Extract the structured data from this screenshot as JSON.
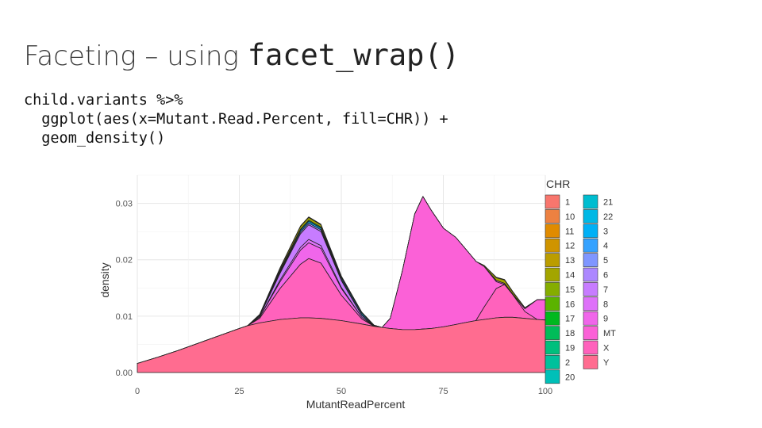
{
  "slide": {
    "title_text": "Faceting – using ",
    "title_code": "facet_wrap()",
    "code_lines": [
      "child.variants %>%",
      "  ggplot(aes(x=Mutant.Read.Percent, fill=CHR)) +",
      "  geom_density()"
    ]
  },
  "chart_data": {
    "type": "area",
    "xlabel": "MutantReadPercent",
    "ylabel": "density",
    "xlim": [
      0,
      100
    ],
    "ylim": [
      0,
      0.035
    ],
    "x_ticks": [
      "0",
      "25",
      "50",
      "75",
      "100"
    ],
    "y_ticks": [
      "0.00",
      "0.01",
      "0.02",
      "0.03"
    ],
    "grid": true,
    "stacked": true,
    "legend": {
      "title": "CHR",
      "position": "right",
      "columns": 2,
      "entries": [
        {
          "label": "1",
          "color": "#F8766D"
        },
        {
          "label": "10",
          "color": "#ED8141"
        },
        {
          "label": "11",
          "color": "#E08B00"
        },
        {
          "label": "12",
          "color": "#CF9400"
        },
        {
          "label": "13",
          "color": "#BB9D00"
        },
        {
          "label": "14",
          "color": "#A3A500"
        },
        {
          "label": "15",
          "color": "#85AD00"
        },
        {
          "label": "16",
          "color": "#5BB300"
        },
        {
          "label": "17",
          "color": "#00B81F"
        },
        {
          "label": "18",
          "color": "#00BC59"
        },
        {
          "label": "19",
          "color": "#00BF7D"
        },
        {
          "label": "2",
          "color": "#00C19C"
        },
        {
          "label": "20",
          "color": "#00C0B8"
        },
        {
          "label": "21",
          "color": "#00BDD0"
        },
        {
          "label": "22",
          "color": "#00B8E5"
        },
        {
          "label": "3",
          "color": "#00B0F6"
        },
        {
          "label": "4",
          "color": "#35A2FF"
        },
        {
          "label": "5",
          "color": "#7F96FF"
        },
        {
          "label": "6",
          "color": "#AC88FF"
        },
        {
          "label": "7",
          "color": "#C77CFF"
        },
        {
          "label": "8",
          "color": "#DE71F9"
        },
        {
          "label": "9",
          "color": "#F066EA"
        },
        {
          "label": "MT",
          "color": "#FB61D7"
        },
        {
          "label": "X",
          "color": "#FF62BC"
        },
        {
          "label": "Y",
          "color": "#FF6C90"
        }
      ]
    },
    "x": [
      0,
      5,
      10,
      15,
      20,
      25,
      27,
      30,
      35,
      40,
      42,
      45,
      50,
      55,
      58,
      60,
      62,
      65,
      68,
      70,
      72,
      75,
      78,
      80,
      83,
      85,
      88,
      90,
      92,
      95,
      98,
      100
    ],
    "series": [
      {
        "name": "Y",
        "color": "#FF6C90",
        "values": [
          0.0016,
          0.0027,
          0.0039,
          0.0052,
          0.0065,
          0.0078,
          0.0083,
          0.0088,
          0.0094,
          0.0097,
          0.0097,
          0.0096,
          0.0092,
          0.0086,
          0.0082,
          0.008,
          0.0078,
          0.0076,
          0.0076,
          0.0077,
          0.0078,
          0.0081,
          0.0085,
          0.0088,
          0.0092,
          0.0094,
          0.0097,
          0.0098,
          0.0098,
          0.0096,
          0.0094,
          0.0093
        ]
      },
      {
        "name": "X",
        "color": "#FF62BC",
        "values": [
          0,
          0,
          0,
          0,
          0,
          0,
          0,
          0.0008,
          0.0055,
          0.0095,
          0.0105,
          0.0098,
          0.0045,
          0.0009,
          0,
          0,
          0,
          0,
          0,
          0,
          0,
          0,
          0,
          0,
          0,
          0.0022,
          0.0052,
          0.0058,
          0.004,
          0.0012,
          0,
          0
        ]
      },
      {
        "name": "MT",
        "color": "#FB61D7",
        "values": [
          0,
          0,
          0,
          0,
          0,
          0,
          0,
          0,
          0,
          0,
          0,
          0,
          0,
          0,
          0,
          0,
          0.0018,
          0.0105,
          0.0205,
          0.0235,
          0.021,
          0.0175,
          0.0155,
          0.0135,
          0.0105,
          0.0072,
          0.0012,
          0,
          0,
          0.0005,
          0.0035,
          0.0036
        ]
      },
      {
        "name": "9",
        "color": "#F066EA",
        "values": [
          0,
          0,
          0,
          0,
          0,
          0,
          0,
          0.0002,
          0.0012,
          0.0025,
          0.0028,
          0.0026,
          0.0012,
          0.0003,
          0,
          0,
          0,
          0,
          0,
          0,
          0,
          0,
          0,
          0,
          0,
          0,
          0.0002,
          0.0002,
          0.0001,
          0,
          0,
          0
        ]
      },
      {
        "name": "8",
        "color": "#DE71F9",
        "values": [
          0,
          0,
          0,
          0,
          0,
          0,
          0,
          0,
          0.0003,
          0.0005,
          0.0006,
          0.0005,
          0.0002,
          0,
          0,
          0,
          0,
          0,
          0,
          0,
          0,
          0,
          0,
          0,
          0,
          0,
          0,
          0,
          0,
          0,
          0,
          0
        ]
      },
      {
        "name": "7",
        "color": "#C77CFF",
        "values": [
          0,
          0,
          0,
          0,
          0,
          0,
          0,
          0.0002,
          0.0012,
          0.0024,
          0.0026,
          0.0025,
          0.0012,
          0.0003,
          0,
          0,
          0,
          0,
          0,
          0,
          0,
          0,
          0,
          0,
          0,
          0,
          0,
          0,
          0,
          0,
          0,
          0
        ]
      },
      {
        "name": "6",
        "color": "#AC88FF",
        "values": [
          0,
          0,
          0,
          0,
          0,
          0,
          0,
          0,
          0.0002,
          0.0003,
          0.0003,
          0.0003,
          0.0002,
          0.0001,
          0,
          0,
          0,
          0,
          0,
          0,
          0,
          0,
          0,
          0,
          0,
          0,
          0,
          0,
          0,
          0,
          0,
          0
        ]
      },
      {
        "name": "3",
        "color": "#00B0F6",
        "values": [
          0,
          0,
          0,
          0,
          0,
          0,
          0,
          0.0001,
          0.0002,
          0.0003,
          0.0003,
          0.0003,
          0.0003,
          0.0003,
          0.0001,
          0,
          0,
          0,
          0,
          0,
          0,
          0,
          0,
          0,
          0,
          0,
          0,
          0,
          0,
          0,
          0,
          0
        ]
      },
      {
        "name": "20",
        "color": "#00C0B8",
        "values": [
          0,
          0,
          0,
          0,
          0,
          0,
          0,
          0.0001,
          0.0002,
          0.0002,
          0.0002,
          0.0002,
          0.0002,
          0.0002,
          0.0001,
          0,
          0,
          0,
          0,
          0,
          0,
          0,
          0,
          0,
          0,
          0,
          0,
          0,
          0,
          0,
          0,
          0
        ]
      },
      {
        "name": "14",
        "color": "#A3A500",
        "values": [
          0,
          0,
          0,
          0,
          0,
          0,
          0,
          0.0001,
          0.0003,
          0.0005,
          0.0005,
          0.0004,
          0.0001,
          0,
          0,
          0,
          0,
          0,
          0,
          0,
          0,
          0,
          0,
          0,
          0,
          0.0002,
          0.0005,
          0.0006,
          0.0004,
          0.0002,
          0,
          0
        ]
      },
      {
        "name": "11",
        "color": "#E08B00",
        "values": [
          0,
          0,
          0,
          0,
          0,
          0,
          0,
          0,
          0.0001,
          0.0001,
          0.0001,
          0.0001,
          0,
          0,
          0,
          0,
          0,
          0,
          0,
          0,
          0,
          0,
          0,
          0,
          0,
          0,
          0.0001,
          0.0001,
          0.0001,
          0,
          0,
          0
        ]
      }
    ]
  }
}
